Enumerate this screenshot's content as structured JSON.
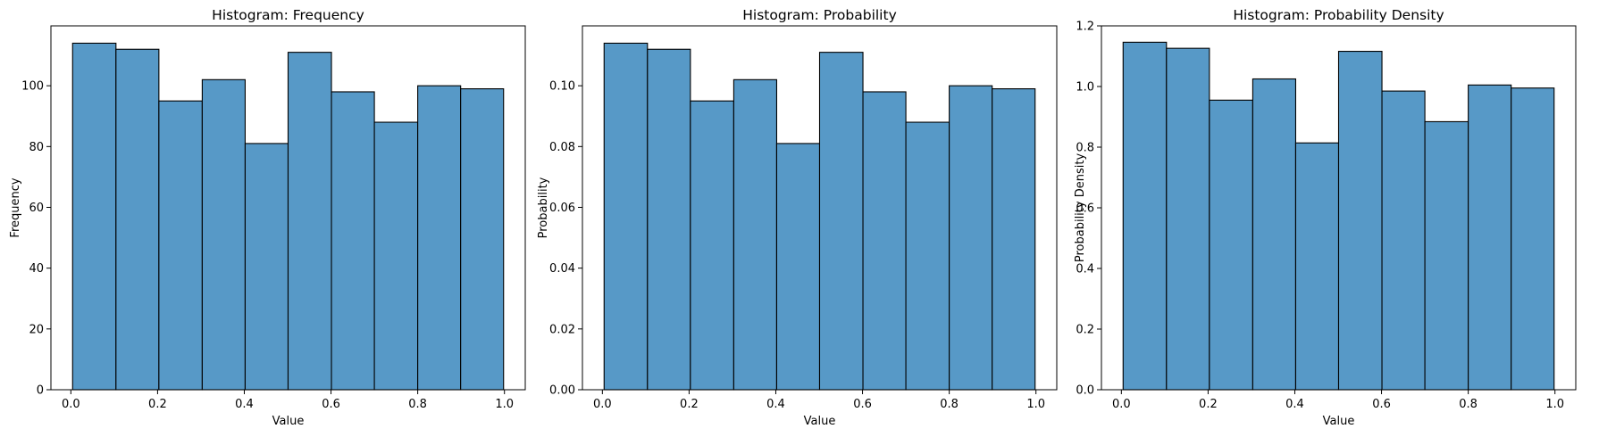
{
  "colors": {
    "bar_fill": "#5799c7",
    "bar_edge": "#000000",
    "axis": "#000000"
  },
  "chart_data": [
    {
      "type": "bar",
      "title": "Histogram: Frequency",
      "xlabel": "Value",
      "ylabel": "Frequency",
      "bin_edges": [
        0.004,
        0.104,
        0.203,
        0.303,
        0.402,
        0.501,
        0.601,
        0.7,
        0.8,
        0.899,
        0.998
      ],
      "values": [
        114,
        112,
        95,
        102,
        81,
        111,
        98,
        88,
        100,
        99
      ],
      "xlim": [
        -0.046,
        1.048
      ],
      "ylim": [
        0,
        119.7
      ],
      "xticks": [
        0.0,
        0.2,
        0.4,
        0.6,
        0.8,
        1.0
      ],
      "xtick_labels": [
        "0.0",
        "0.2",
        "0.4",
        "0.6",
        "0.8",
        "1.0"
      ],
      "yticks": [
        0,
        20,
        40,
        60,
        80,
        100
      ],
      "ytick_labels": [
        "0",
        "20",
        "40",
        "60",
        "80",
        "100"
      ]
    },
    {
      "type": "bar",
      "title": "Histogram: Probability",
      "xlabel": "Value",
      "ylabel": "Probability",
      "bin_edges": [
        0.004,
        0.104,
        0.203,
        0.303,
        0.402,
        0.501,
        0.601,
        0.7,
        0.8,
        0.899,
        0.998
      ],
      "values": [
        0.114,
        0.112,
        0.095,
        0.102,
        0.081,
        0.111,
        0.098,
        0.088,
        0.1,
        0.099
      ],
      "xlim": [
        -0.046,
        1.048
      ],
      "ylim": [
        0,
        0.1197
      ],
      "xticks": [
        0.0,
        0.2,
        0.4,
        0.6,
        0.8,
        1.0
      ],
      "xtick_labels": [
        "0.0",
        "0.2",
        "0.4",
        "0.6",
        "0.8",
        "1.0"
      ],
      "yticks": [
        0,
        0.02,
        0.04,
        0.06,
        0.08,
        0.1
      ],
      "ytick_labels": [
        "0.00",
        "0.02",
        "0.04",
        "0.06",
        "0.08",
        "0.10"
      ]
    },
    {
      "type": "bar",
      "title": "Histogram: Probability Density",
      "xlabel": "Value",
      "ylabel": "Probability Density",
      "bin_edges": [
        0.004,
        0.104,
        0.203,
        0.303,
        0.402,
        0.501,
        0.601,
        0.7,
        0.8,
        0.899,
        0.998
      ],
      "values": [
        1.146,
        1.126,
        0.955,
        1.025,
        0.814,
        1.116,
        0.985,
        0.884,
        1.005,
        0.995
      ],
      "xlim": [
        -0.046,
        1.048
      ],
      "ylim": [
        0,
        1.2
      ],
      "xticks": [
        0.0,
        0.2,
        0.4,
        0.6,
        0.8,
        1.0
      ],
      "xtick_labels": [
        "0.0",
        "0.2",
        "0.4",
        "0.6",
        "0.8",
        "1.0"
      ],
      "yticks": [
        0,
        0.2,
        0.4,
        0.6,
        0.8,
        1.0,
        1.2
      ],
      "ytick_labels": [
        "0.0",
        "0.2",
        "0.4",
        "0.6",
        "0.8",
        "1.0",
        "1.2"
      ]
    }
  ]
}
